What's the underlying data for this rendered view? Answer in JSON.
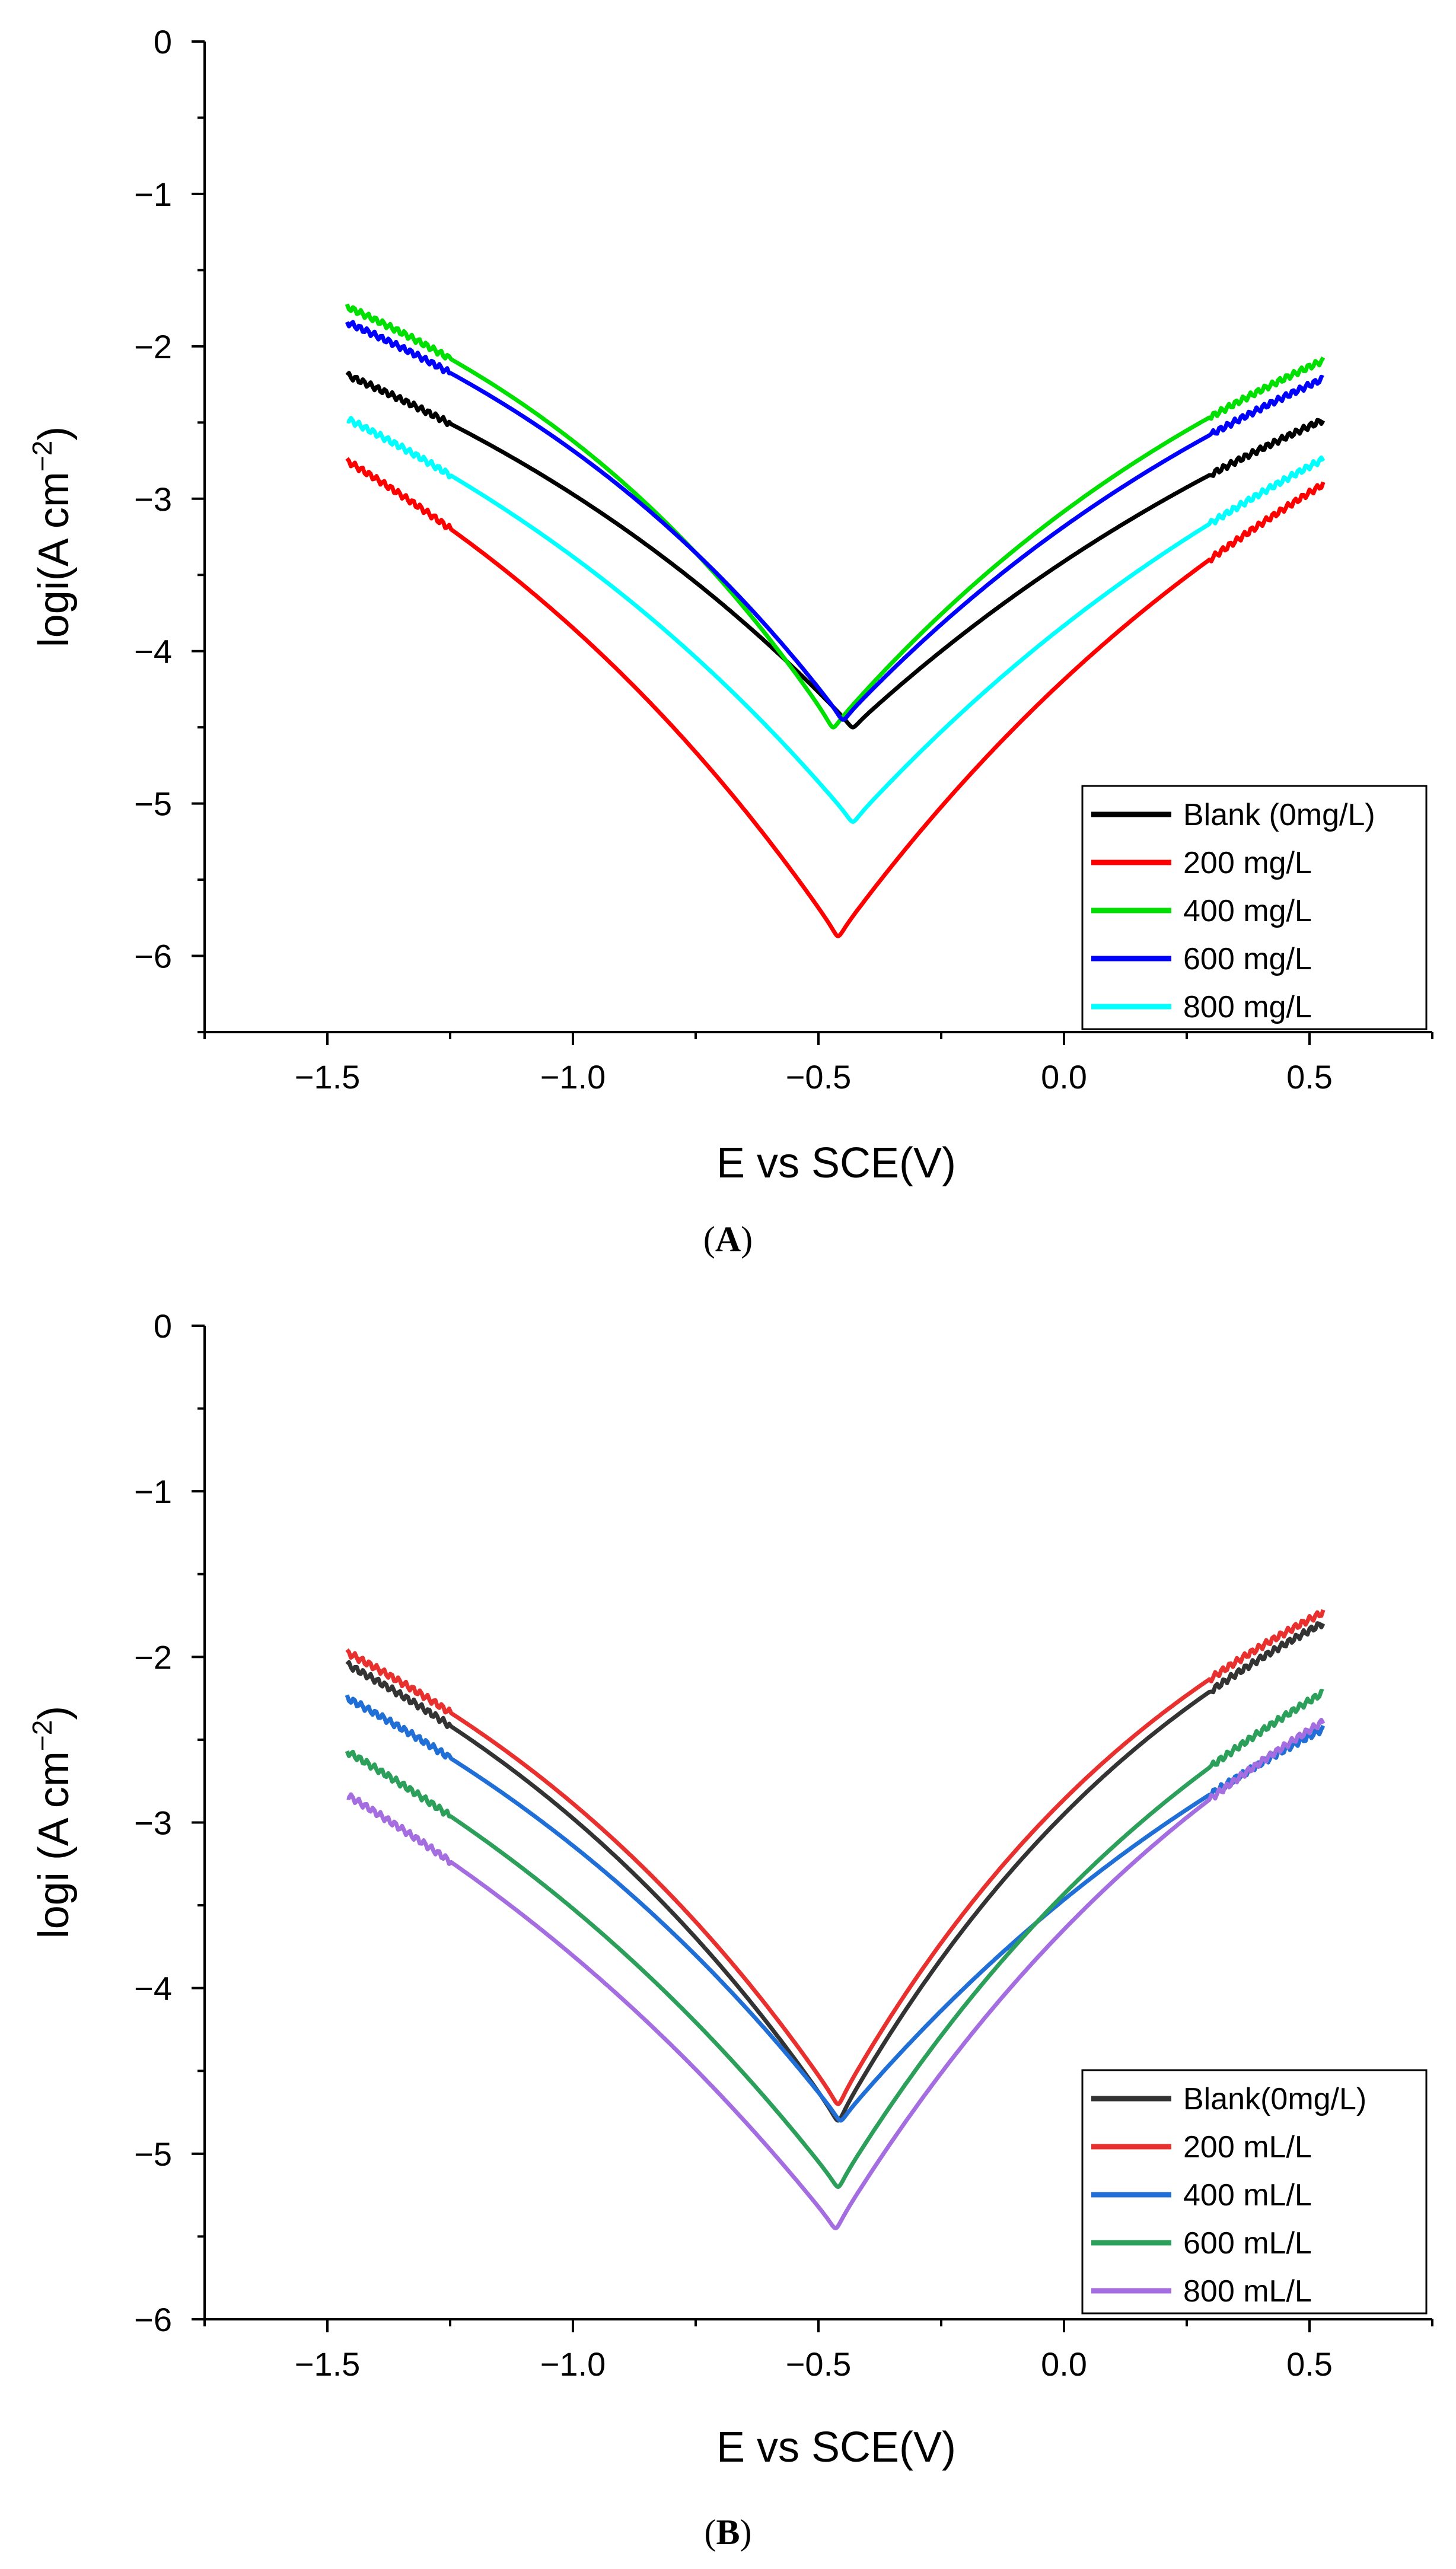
{
  "chart_data": [
    {
      "panel": "A",
      "type": "line",
      "xlabel": "E vs SCE(V)",
      "ylabel": "logi(A cm",
      "ylabel_sup": "−2",
      "ylabel_close": ")",
      "xlim": [
        -1.75,
        0.75
      ],
      "ylim": [
        -6.5,
        0
      ],
      "xticks": [
        -1.5,
        -1.0,
        -0.5,
        0.0,
        0.5
      ],
      "xtick_labels": [
        "−1.5",
        "−1.0",
        "−0.5",
        "0.0",
        "0.5"
      ],
      "yticks": [
        0,
        -1,
        -2,
        -3,
        -4,
        -5,
        -6
      ],
      "ytick_labels": [
        "0",
        "−1",
        "−2",
        "−3",
        "−4",
        "−5",
        "−6"
      ],
      "legend_position": "bottom-right",
      "series": [
        {
          "name": "Blank (0mg/L)",
          "color": "#000000",
          "ecorr": -0.43,
          "imin": -4.5,
          "ia": -0.62,
          "ic": -0.62,
          "sa": 1.35,
          "sc": 1.55
        },
        {
          "name": "200 mg/L",
          "color": "#ff0000",
          "ecorr": -0.46,
          "imin": -5.87,
          "ia": -0.58,
          "ic": -0.62,
          "sa": 2.0,
          "sc": 2.15
        },
        {
          "name": "400 mg/L",
          "color": "#00e000",
          "ecorr": -0.47,
          "imin": -4.5,
          "ia": -0.58,
          "ic": -0.6,
          "sa": 1.7,
          "sc": 2.2
        },
        {
          "name": "600 mg/L",
          "color": "#0000ff",
          "ecorr": -0.45,
          "imin": -4.45,
          "ia": -0.57,
          "ic": -0.58,
          "sa": 1.55,
          "sc": 1.95
        },
        {
          "name": "800 mg/L",
          "color": "#00ffff",
          "ecorr": -0.43,
          "imin": -5.12,
          "ia": -0.58,
          "ic": -0.58,
          "sa": 1.6,
          "sc": 1.75
        }
      ]
    },
    {
      "panel": "B",
      "type": "line",
      "xlabel": "E vs SCE(V)",
      "ylabel": "logi (A cm",
      "ylabel_sup": "−2",
      "ylabel_close": ")",
      "xlim": [
        -1.75,
        0.75
      ],
      "ylim": [
        -6,
        0
      ],
      "xticks": [
        -1.5,
        -1.0,
        -0.5,
        0.0,
        0.5
      ],
      "xtick_labels": [
        "−1.5",
        "−1.0",
        "−0.5",
        "0.0",
        "0.5"
      ],
      "yticks": [
        0,
        -1,
        -2,
        -3,
        -4,
        -5,
        -6
      ],
      "ytick_labels": [
        "0",
        "−1",
        "−2",
        "−3",
        "−4",
        "−5",
        "−6"
      ],
      "legend_position": "bottom-right",
      "series": [
        {
          "name": "Blank(0mg/L)",
          "color": "#333333",
          "ecorr": -0.46,
          "imin": -4.8,
          "ia": -0.55,
          "ic": -0.5,
          "sa": 2.4,
          "sc": 2.0
        },
        {
          "name": "200 mL/L",
          "color": "#e8302e",
          "ecorr": -0.46,
          "imin": -4.7,
          "ia": -0.55,
          "ic": -0.5,
          "sa": 2.4,
          "sc": 2.0
        },
        {
          "name": "400 mL/L",
          "color": "#1f6fd6",
          "ecorr": -0.455,
          "imin": -4.8,
          "ia": -0.56,
          "ic": -0.5,
          "sa": 1.6,
          "sc": 1.75
        },
        {
          "name": "600 mL/L",
          "color": "#2ca05a",
          "ecorr": -0.46,
          "imin": -5.2,
          "ia": -0.56,
          "ic": -0.5,
          "sa": 2.2,
          "sc": 1.75
        },
        {
          "name": "800 mL/L",
          "color": "#a56ee0",
          "ecorr": -0.465,
          "imin": -5.45,
          "ia": -0.56,
          "ic": -0.5,
          "sa": 2.2,
          "sc": 1.7
        }
      ]
    }
  ],
  "panel_labels": {
    "a": "A",
    "b": "B"
  }
}
